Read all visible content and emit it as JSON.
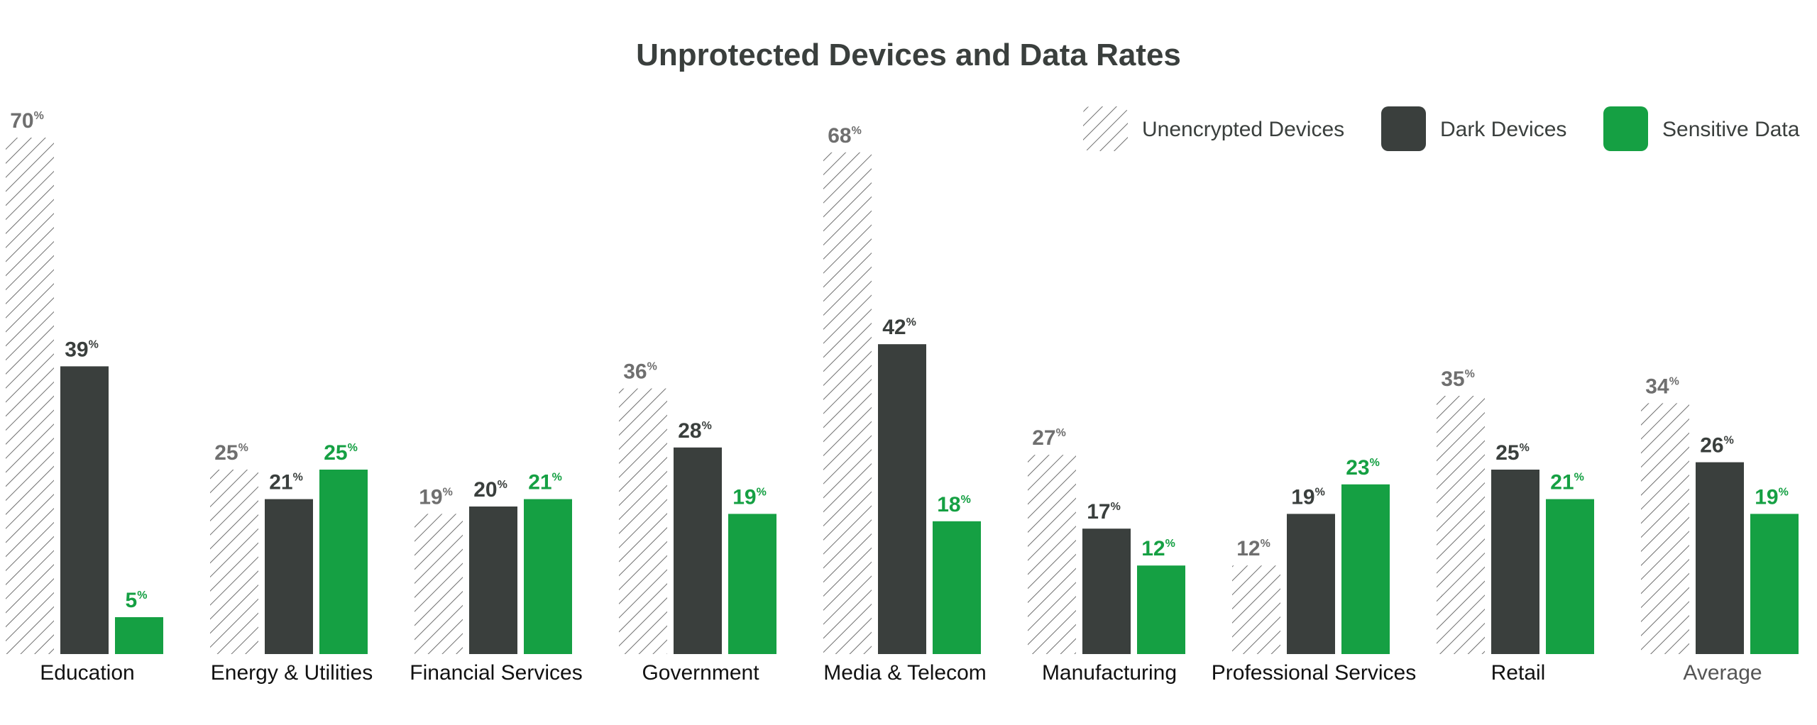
{
  "chart_data": {
    "type": "bar",
    "title": "Unprotected Devices and Data Rates",
    "categories": [
      "Education",
      "Energy & Utilities",
      "Financial Services",
      "Government",
      "Media & Telecom",
      "Manufacturing",
      "Professional Services",
      "Retail",
      "Average"
    ],
    "series": [
      {
        "name": "Unencrypted Devices",
        "style": "hatched",
        "color": "#6f6f6f",
        "label_color": "#6f6f6f",
        "values": [
          70,
          25,
          19,
          36,
          68,
          27,
          12,
          35,
          34
        ]
      },
      {
        "name": "Dark Devices",
        "style": "solid",
        "color": "#3a3f3d",
        "label_color": "#3a3f3d",
        "values": [
          39,
          21,
          20,
          28,
          42,
          17,
          19,
          25,
          26
        ]
      },
      {
        "name": "Sensitive Data",
        "style": "solid",
        "color": "#15a043",
        "label_color": "#15a043",
        "values": [
          5,
          25,
          21,
          19,
          18,
          12,
          23,
          21,
          19
        ]
      }
    ],
    "value_suffix": "%",
    "ylim": [
      0,
      70
    ],
    "grid": false,
    "legend_position": "top-right",
    "xlabel": "",
    "ylabel": ""
  },
  "colors": {
    "title": "#3a3f3d",
    "category_label": "#111111",
    "average_label": "#555555",
    "hatch": "#6f6f6f"
  }
}
